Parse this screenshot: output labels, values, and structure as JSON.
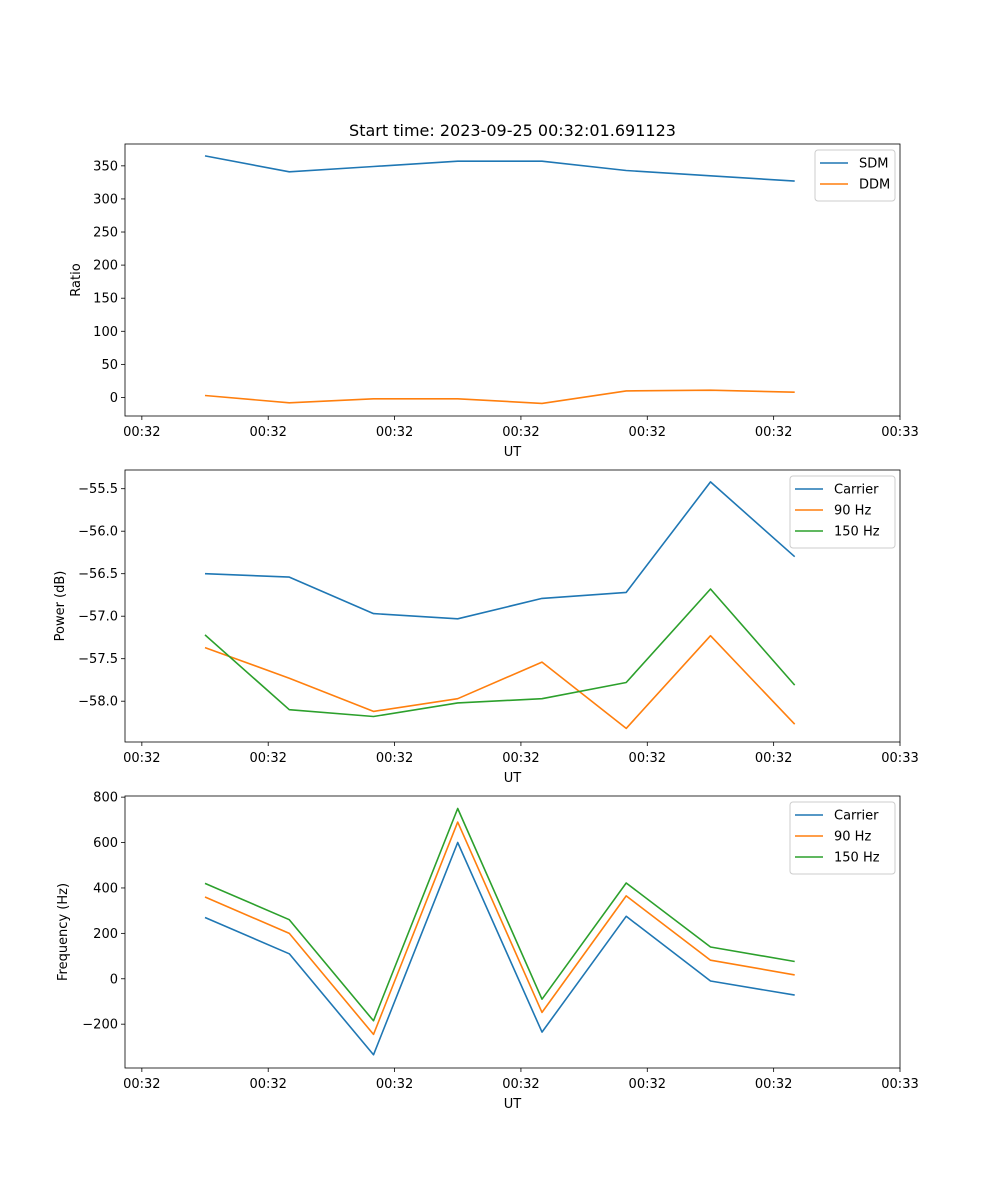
{
  "chart_data": [
    {
      "type": "line",
      "title": "Start time: 2023-09-25 00:32:01.691123",
      "xlabel": "UT",
      "ylabel": "Ratio",
      "xlim": [
        -0.2,
        9.0
      ],
      "ylim": [
        -28,
        383
      ],
      "x": [
        0.75,
        1.75,
        2.75,
        3.75,
        4.75,
        5.75,
        6.75,
        7.75
      ],
      "x_ticks": [
        0,
        1.5,
        3,
        4.5,
        6,
        7.5,
        9
      ],
      "x_tick_labels": [
        "00:32",
        "00:32",
        "00:32",
        "00:32",
        "00:32",
        "00:32",
        "00:33"
      ],
      "y_ticks": [
        0,
        50,
        100,
        150,
        200,
        250,
        300,
        350
      ],
      "y_tick_labels": [
        "0",
        "50",
        "100",
        "150",
        "200",
        "250",
        "300",
        "350"
      ],
      "legend_position": "top-right",
      "series": [
        {
          "name": "SDM",
          "color": "#1f77b4",
          "values": [
            365,
            341,
            349,
            357,
            357,
            343,
            335,
            327
          ]
        },
        {
          "name": "DDM",
          "color": "#ff7f0e",
          "values": [
            3,
            -8,
            -2,
            -2,
            -9,
            10,
            11,
            8
          ]
        }
      ]
    },
    {
      "type": "line",
      "title": "",
      "xlabel": "UT",
      "ylabel": "Power (dB)",
      "xlim": [
        -0.2,
        9.0
      ],
      "ylim": [
        -58.48,
        -55.28
      ],
      "x": [
        0.75,
        1.75,
        2.75,
        3.75,
        4.75,
        5.75,
        6.75,
        7.75
      ],
      "x_ticks": [
        0,
        1.5,
        3,
        4.5,
        6,
        7.5,
        9
      ],
      "x_tick_labels": [
        "00:32",
        "00:32",
        "00:32",
        "00:32",
        "00:32",
        "00:32",
        "00:33"
      ],
      "y_ticks": [
        -58.0,
        -57.5,
        -57.0,
        -56.5,
        -56.0,
        -55.5
      ],
      "y_tick_labels": [
        "−58.0",
        "−57.5",
        "−57.0",
        "−56.5",
        "−56.0",
        "−55.5"
      ],
      "legend_position": "top-right",
      "series": [
        {
          "name": "Carrier",
          "color": "#1f77b4",
          "values": [
            -56.5,
            -56.54,
            -56.97,
            -57.03,
            -56.79,
            -56.72,
            -55.42,
            -56.3
          ]
        },
        {
          "name": "90 Hz",
          "color": "#ff7f0e",
          "values": [
            -57.37,
            -57.73,
            -58.12,
            -57.97,
            -57.54,
            -58.32,
            -57.23,
            -58.27
          ]
        },
        {
          "name": "150 Hz",
          "color": "#2ca02c",
          "values": [
            -57.22,
            -58.1,
            -58.18,
            -58.02,
            -57.97,
            -57.78,
            -56.68,
            -57.81
          ]
        }
      ]
    },
    {
      "type": "line",
      "title": "",
      "xlabel": "UT",
      "ylabel": "Frequency (Hz)",
      "xlim": [
        -0.2,
        9.0
      ],
      "ylim": [
        -393,
        805
      ],
      "x": [
        0.75,
        1.75,
        2.75,
        3.75,
        4.75,
        5.75,
        6.75,
        7.75
      ],
      "x_ticks": [
        0,
        1.5,
        3,
        4.5,
        6,
        7.5,
        9
      ],
      "x_tick_labels": [
        "00:32",
        "00:32",
        "00:32",
        "00:32",
        "00:32",
        "00:32",
        "00:33"
      ],
      "y_ticks": [
        -200,
        0,
        200,
        400,
        600,
        800
      ],
      "y_tick_labels": [
        "−200",
        "0",
        "200",
        "400",
        "600",
        "800"
      ],
      "legend_position": "top-right",
      "series": [
        {
          "name": "Carrier",
          "color": "#1f77b4",
          "values": [
            270,
            110,
            -335,
            600,
            -235,
            275,
            -10,
            -72
          ]
        },
        {
          "name": "90 Hz",
          "color": "#ff7f0e",
          "values": [
            360,
            200,
            -245,
            690,
            -148,
            365,
            82,
            17
          ]
        },
        {
          "name": "150 Hz",
          "color": "#2ca02c",
          "values": [
            420,
            260,
            -185,
            750,
            -90,
            422,
            140,
            76
          ]
        }
      ]
    }
  ]
}
